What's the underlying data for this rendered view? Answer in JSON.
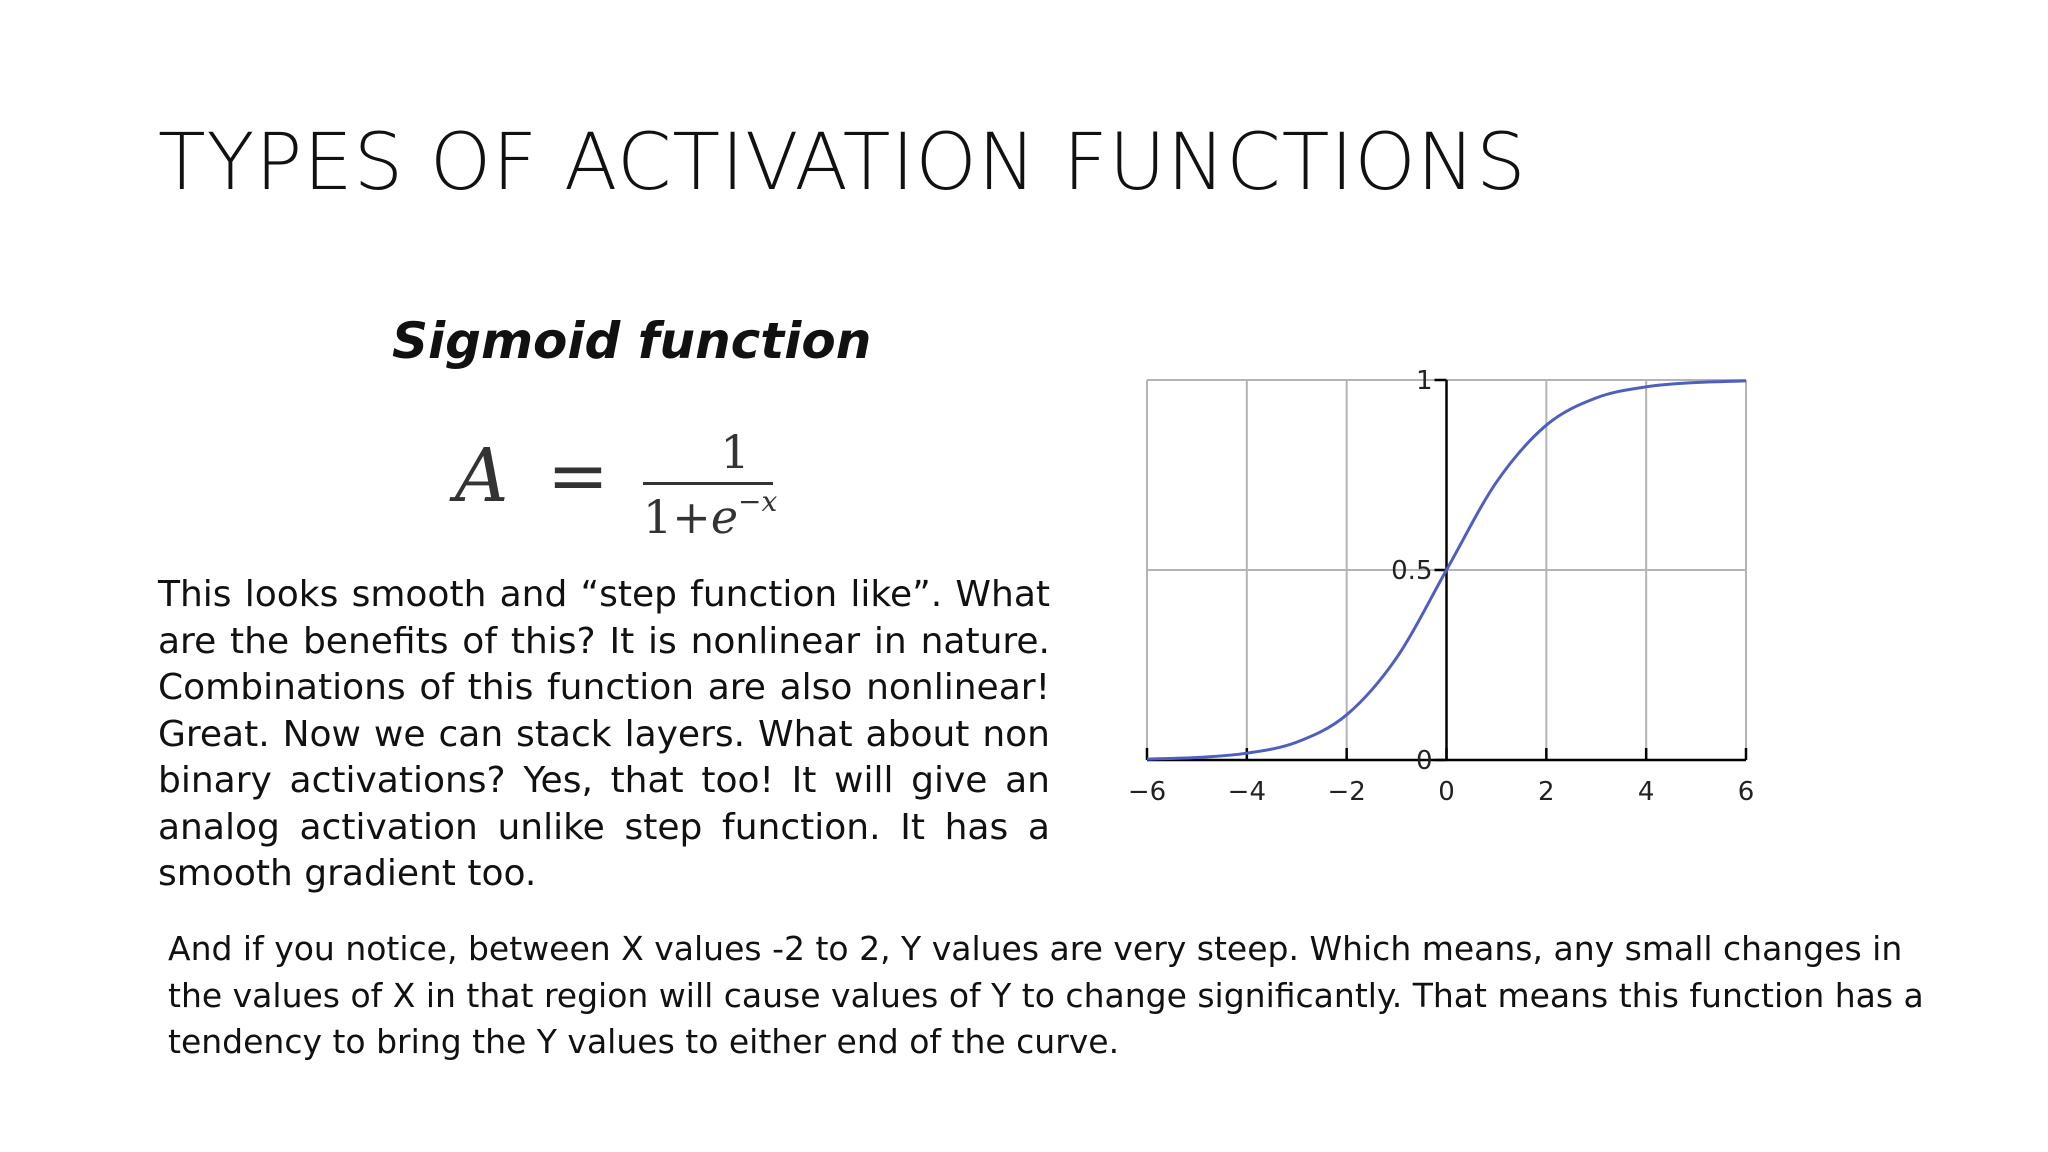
{
  "slide": {
    "title": "TYPES OF ACTIVATION FUNCTIONS",
    "subtitle": "Sigmoid function",
    "formula": {
      "lhs": "A",
      "equals": "=",
      "numerator": "1",
      "denominator_base": "1+",
      "denominator_e": "e",
      "denominator_exp": "−x"
    },
    "body": "This looks smooth and “step function like”. What are the benefits of this? It is nonlinear in nature. Combinations of this function are also nonlinear! Great. Now we can stack layers. What about non binary activations? Yes, that too! It will give an analog activation unlike step function. It has a smooth gradient too.",
    "note": "And if you notice, between X values -2 to 2, Y values are very steep. Which means, any small changes in the values of X in that region will cause values of Y to change significantly. That means this function has a tendency to bring the Y values to either end of the curve."
  },
  "chart_data": {
    "type": "line",
    "title": "",
    "xlabel": "",
    "ylabel": "",
    "xlim": [
      -6,
      6
    ],
    "ylim": [
      0,
      1
    ],
    "x_ticks": [
      -6,
      -4,
      -2,
      0,
      2,
      4,
      6
    ],
    "x_tick_labels": [
      "−6",
      "−4",
      "−2",
      "0",
      "2",
      "4",
      "6"
    ],
    "y_ticks": [
      0,
      0.5,
      1
    ],
    "y_tick_labels": [
      "0",
      "0.5",
      "1"
    ],
    "grid": true,
    "series": [
      {
        "color": "#4f5fbf",
        "x": [
          -6,
          -5,
          -4,
          -3,
          -2,
          -1,
          0,
          1,
          2,
          3,
          4,
          5,
          6
        ],
        "values": [
          0.0025,
          0.0067,
          0.018,
          0.047,
          0.119,
          0.269,
          0.5,
          0.731,
          0.881,
          0.953,
          0.982,
          0.9933,
          0.9975
        ]
      }
    ],
    "colors": {
      "grid": "#b4b4b4",
      "axis": "#000000"
    }
  }
}
